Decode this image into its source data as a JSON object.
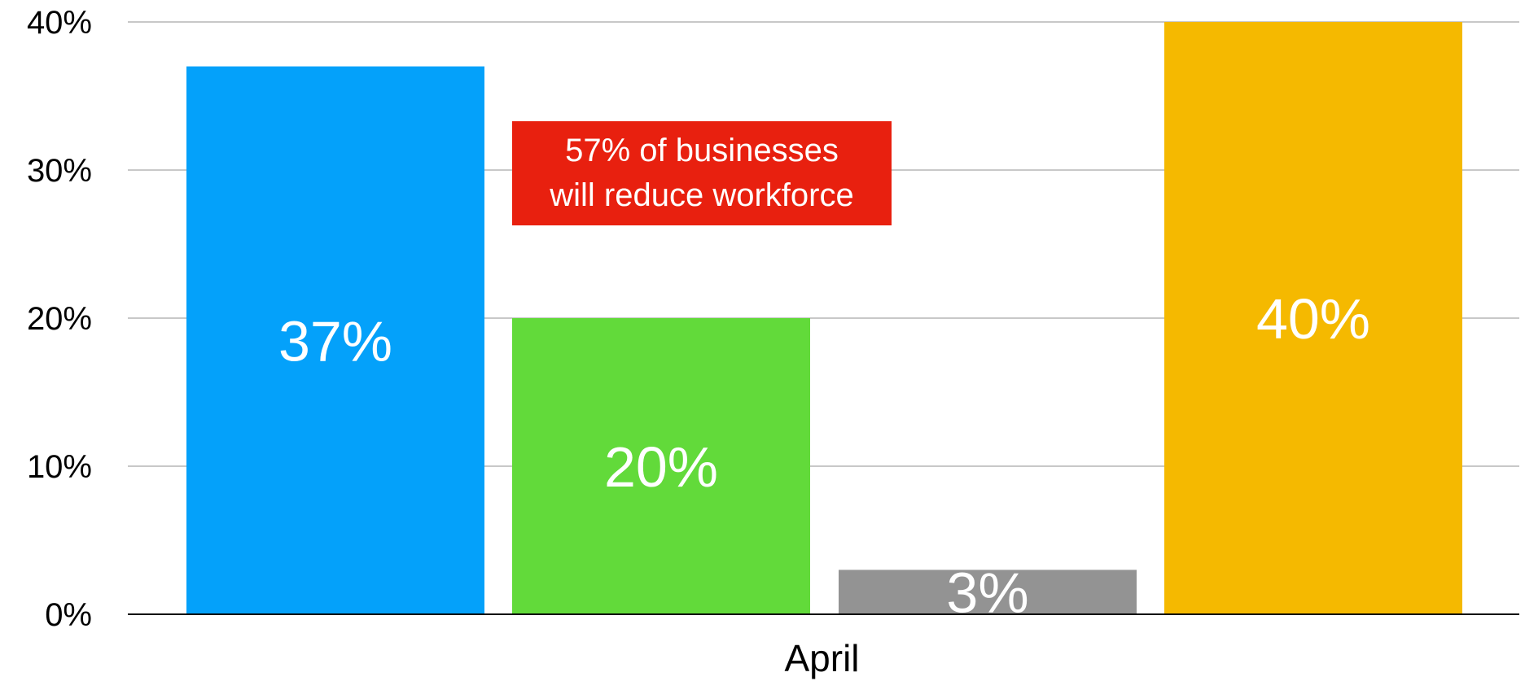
{
  "chart_data": {
    "type": "bar",
    "categories": [
      "April"
    ],
    "series": [
      {
        "values": [
          37
        ],
        "color": "#04A1FA",
        "label": "37%"
      },
      {
        "values": [
          20
        ],
        "color": "#62DA3A",
        "label": "20%"
      },
      {
        "values": [
          3
        ],
        "color": "#939393",
        "label": "3%"
      },
      {
        "values": [
          40
        ],
        "color": "#F5B900",
        "label": "40%"
      }
    ],
    "yticks": [
      "0%",
      "10%",
      "20%",
      "30%",
      "40%"
    ],
    "ylim": [
      0,
      40
    ],
    "grid": true,
    "annotation": {
      "text": "57% of businesses\nwill reduce workforce",
      "background": "#E8200F",
      "text_color": "#FFFFFF"
    }
  }
}
